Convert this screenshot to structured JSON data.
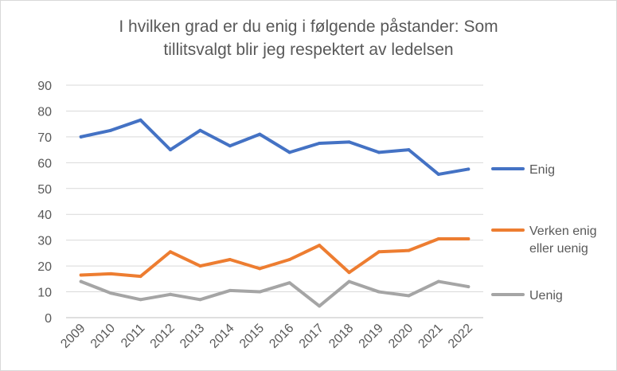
{
  "chart_data": {
    "type": "line",
    "title_lines": [
      "I hvilken grad er du enig i følgende påstander: Som",
      "tillitsvalgt blir jeg respektert av ledelsen"
    ],
    "categories": [
      "2009",
      "2010",
      "2011",
      "2012",
      "2013",
      "2014",
      "2015",
      "2016",
      "2017",
      "2018",
      "2019",
      "2020",
      "2021",
      "2022"
    ],
    "y_ticks": [
      "0",
      "10",
      "20",
      "30",
      "40",
      "50",
      "60",
      "70",
      "80",
      "90"
    ],
    "ylim": [
      0,
      90
    ],
    "grid": true,
    "legend_position": "right",
    "series": [
      {
        "name_lines": [
          "Enig"
        ],
        "color": "#4472c4",
        "values": [
          70,
          72.5,
          76.5,
          65,
          72.5,
          66.5,
          71,
          64,
          67.5,
          68,
          64,
          65,
          55.5,
          57.5
        ]
      },
      {
        "name_lines": [
          "Verken enig",
          "eller uenig"
        ],
        "color": "#ed7d31",
        "values": [
          16.5,
          17,
          16,
          25.5,
          20,
          22.5,
          19,
          22.5,
          28,
          17.5,
          25.5,
          26,
          30.5,
          30.5
        ]
      },
      {
        "name_lines": [
          "Uenig"
        ],
        "color": "#a5a5a5",
        "values": [
          14,
          9.5,
          7,
          9,
          7,
          10.5,
          10,
          13.5,
          4.5,
          14,
          10,
          8.5,
          14,
          12
        ]
      }
    ]
  }
}
